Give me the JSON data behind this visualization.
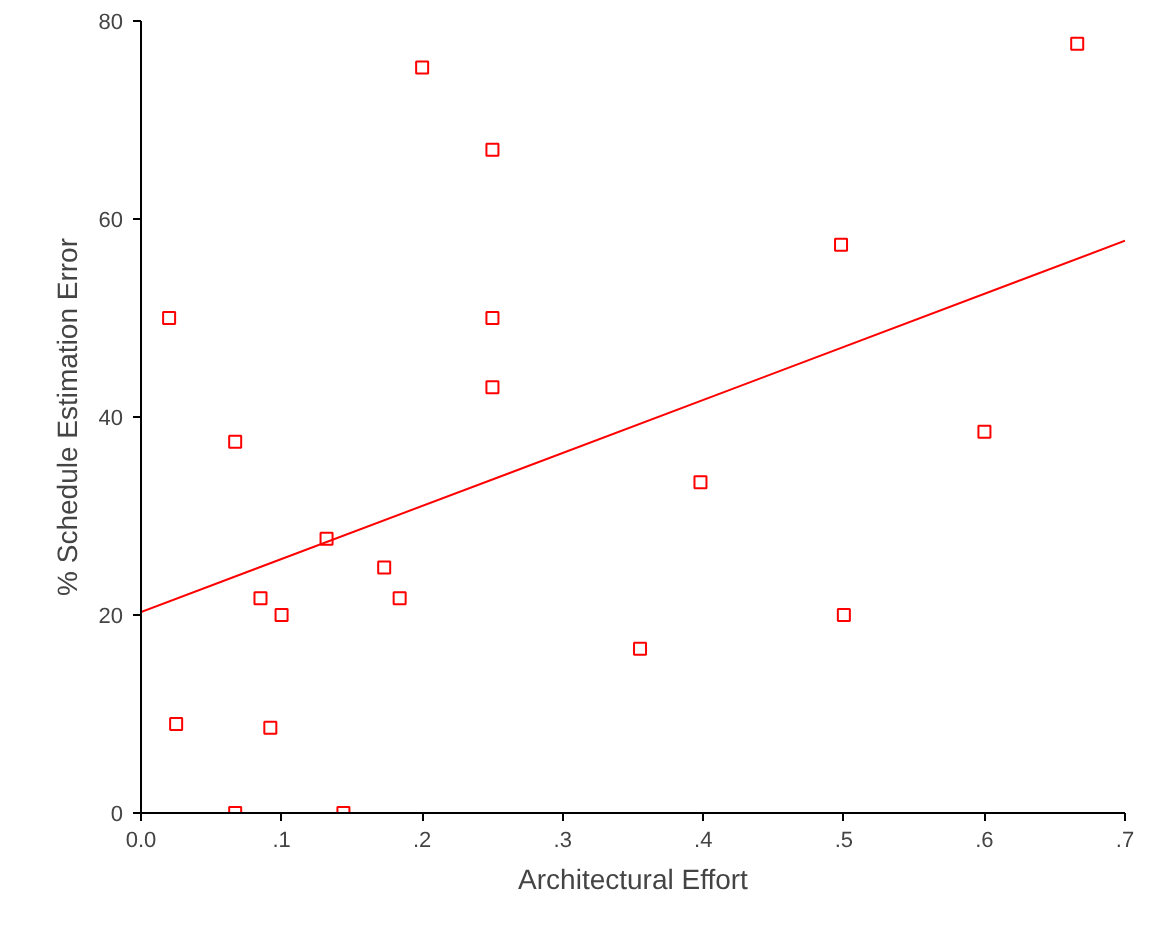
{
  "chart_data": {
    "type": "scatter",
    "xlabel": "Architectural Effort",
    "ylabel": "% Schedule Estimation Error",
    "xlim": [
      0,
      0.7
    ],
    "ylim": [
      0,
      80
    ],
    "xticks": [
      {
        "value": 0,
        "label": "0.0"
      },
      {
        "value": 0.1,
        "label": ".1"
      },
      {
        "value": 0.2,
        "label": ".2"
      },
      {
        "value": 0.3,
        "label": ".3"
      },
      {
        "value": 0.4,
        "label": ".4"
      },
      {
        "value": 0.5,
        "label": ".5"
      },
      {
        "value": 0.6,
        "label": ".6"
      },
      {
        "value": 0.7,
        "label": ".7"
      }
    ],
    "yticks": [
      0,
      20,
      40,
      60,
      80
    ],
    "grid": false,
    "marker": "square",
    "series": [
      {
        "color": "#ff0000",
        "x": [
          0.02,
          0.025,
          0.067,
          0.067,
          0.085,
          0.092,
          0.1,
          0.132,
          0.144,
          0.173,
          0.184,
          0.2,
          0.25,
          0.25,
          0.25,
          0.355,
          0.398,
          0.498,
          0.5,
          0.6,
          0.666
        ],
        "values": [
          50,
          9,
          37.5,
          0,
          21.7,
          8.6,
          20,
          27.7,
          0,
          24.8,
          21.7,
          75.3,
          67,
          50,
          43,
          16.6,
          33.4,
          57.4,
          20,
          38.5,
          77.7
        ]
      },
      {
        "type": "line",
        "marker": "none",
        "color": "#ff0000",
        "x": [
          0,
          0.7
        ],
        "values": [
          20.3,
          57.8
        ]
      }
    ]
  }
}
